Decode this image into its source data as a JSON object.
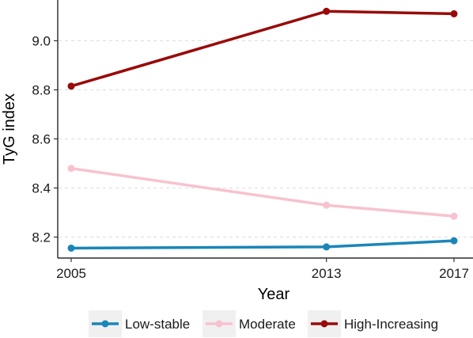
{
  "chart_data": {
    "type": "line",
    "x": [
      2005,
      2013,
      2017
    ],
    "xlim": [
      2005,
      2017
    ],
    "ylim": [
      8.15,
      9.2
    ],
    "xticks": [
      2005,
      2013,
      2017
    ],
    "yticks": [
      8.2,
      8.4,
      8.6,
      8.8,
      9.0
    ],
    "ytick_labels": [
      "8.2",
      "8.4",
      "8.6",
      "8.8",
      "9.0"
    ],
    "xlabel": "Year",
    "ylabel": "TyG index",
    "grid": "horizontal dashed",
    "legend_position": "bottom",
    "series": [
      {
        "name": "Low-stable",
        "color": "#1a86b8",
        "values": [
          8.155,
          8.16,
          8.185
        ]
      },
      {
        "name": "Moderate",
        "color": "#f7c2ce",
        "values": [
          8.48,
          8.33,
          8.285
        ]
      },
      {
        "name": "High-Increasing",
        "color": "#990a0a",
        "values": [
          8.815,
          9.12,
          9.11
        ]
      }
    ]
  }
}
